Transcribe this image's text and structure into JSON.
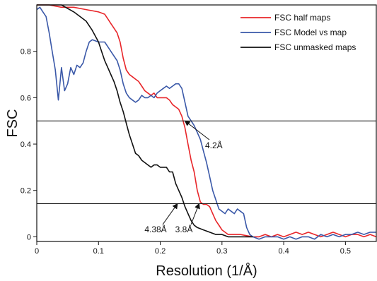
{
  "chart_data": {
    "type": "line",
    "title": "",
    "xlabel": "Resolution (1/Å)",
    "ylabel": "FSC",
    "xlim": [
      0,
      0.55
    ],
    "ylim": [
      -0.02,
      1.0
    ],
    "xticks": [
      0,
      0.1,
      0.2,
      0.3,
      0.4,
      0.5
    ],
    "xtick_labels": [
      "0",
      "0.1",
      "0.2",
      "0.3",
      "0.4",
      "0.5"
    ],
    "yticks": [
      0,
      0.2,
      0.4,
      0.6,
      0.8
    ],
    "ytick_labels": [
      "0",
      "0.2",
      "0.4",
      "0.6",
      "0.8"
    ],
    "grid": false,
    "legend_position": "top-right",
    "hlines": [
      0.5,
      0.143
    ],
    "series": [
      {
        "name": "FSC half maps",
        "color": "#e8262a",
        "x": [
          0,
          0.02,
          0.04,
          0.06,
          0.08,
          0.1,
          0.11,
          0.115,
          0.12,
          0.125,
          0.13,
          0.135,
          0.14,
          0.145,
          0.15,
          0.155,
          0.16,
          0.165,
          0.17,
          0.175,
          0.18,
          0.185,
          0.19,
          0.195,
          0.2,
          0.205,
          0.21,
          0.215,
          0.22,
          0.225,
          0.23,
          0.235,
          0.24,
          0.245,
          0.25,
          0.255,
          0.26,
          0.265,
          0.27,
          0.275,
          0.28,
          0.285,
          0.29,
          0.295,
          0.3,
          0.305,
          0.31,
          0.32,
          0.33,
          0.34,
          0.35,
          0.36,
          0.37,
          0.38,
          0.39,
          0.4,
          0.41,
          0.42,
          0.43,
          0.44,
          0.45,
          0.46,
          0.47,
          0.48,
          0.49,
          0.5,
          0.51,
          0.52,
          0.53,
          0.54,
          0.55
        ],
        "y": [
          1.0,
          1.0,
          0.99,
          0.99,
          0.98,
          0.97,
          0.96,
          0.94,
          0.92,
          0.9,
          0.88,
          0.84,
          0.77,
          0.72,
          0.7,
          0.69,
          0.68,
          0.67,
          0.65,
          0.63,
          0.62,
          0.61,
          0.62,
          0.6,
          0.6,
          0.6,
          0.6,
          0.59,
          0.57,
          0.56,
          0.55,
          0.52,
          0.47,
          0.4,
          0.33,
          0.28,
          0.2,
          0.15,
          0.14,
          0.14,
          0.13,
          0.1,
          0.07,
          0.05,
          0.03,
          0.02,
          0.01,
          0.01,
          0.01,
          0.005,
          0.0,
          0.0,
          0.01,
          0.0,
          0.01,
          0.0,
          0.01,
          0.02,
          0.01,
          0.02,
          0.01,
          0.0,
          0.01,
          0.02,
          0.01,
          0.0,
          0.01,
          0.01,
          0.0,
          0.01,
          0.0
        ]
      },
      {
        "name": "FSC Model vs map",
        "color": "#3a58a8",
        "x": [
          0,
          0.005,
          0.01,
          0.015,
          0.02,
          0.025,
          0.03,
          0.035,
          0.04,
          0.045,
          0.05,
          0.055,
          0.06,
          0.065,
          0.07,
          0.075,
          0.08,
          0.085,
          0.09,
          0.1,
          0.11,
          0.115,
          0.12,
          0.125,
          0.13,
          0.135,
          0.14,
          0.145,
          0.15,
          0.155,
          0.16,
          0.165,
          0.17,
          0.175,
          0.18,
          0.185,
          0.19,
          0.195,
          0.2,
          0.205,
          0.21,
          0.215,
          0.22,
          0.225,
          0.23,
          0.235,
          0.24,
          0.245,
          0.25,
          0.255,
          0.26,
          0.265,
          0.27,
          0.275,
          0.28,
          0.285,
          0.29,
          0.295,
          0.3,
          0.305,
          0.31,
          0.315,
          0.32,
          0.325,
          0.33,
          0.335,
          0.34,
          0.345,
          0.35,
          0.36,
          0.37,
          0.38,
          0.39,
          0.4,
          0.41,
          0.42,
          0.43,
          0.44,
          0.45,
          0.46,
          0.47,
          0.48,
          0.49,
          0.5,
          0.51,
          0.52,
          0.53,
          0.54,
          0.55
        ],
        "y": [
          0.98,
          0.99,
          0.97,
          0.95,
          0.88,
          0.8,
          0.72,
          0.59,
          0.73,
          0.63,
          0.66,
          0.73,
          0.7,
          0.74,
          0.73,
          0.75,
          0.8,
          0.84,
          0.85,
          0.84,
          0.84,
          0.82,
          0.8,
          0.78,
          0.76,
          0.72,
          0.66,
          0.62,
          0.6,
          0.59,
          0.58,
          0.59,
          0.61,
          0.6,
          0.6,
          0.61,
          0.6,
          0.62,
          0.63,
          0.64,
          0.65,
          0.64,
          0.65,
          0.66,
          0.66,
          0.64,
          0.58,
          0.52,
          0.5,
          0.48,
          0.45,
          0.42,
          0.37,
          0.32,
          0.26,
          0.2,
          0.16,
          0.12,
          0.11,
          0.1,
          0.12,
          0.11,
          0.1,
          0.12,
          0.11,
          0.1,
          0.04,
          0.01,
          0.0,
          -0.01,
          0.0,
          0.0,
          0.0,
          -0.01,
          0.0,
          -0.01,
          0.0,
          0.0,
          -0.01,
          0.01,
          0.0,
          0.01,
          0.0,
          0.01,
          0.01,
          0.02,
          0.01,
          0.02,
          0.02
        ]
      },
      {
        "name": "FSC unmasked maps",
        "color": "#111111",
        "x": [
          0,
          0.02,
          0.04,
          0.06,
          0.07,
          0.08,
          0.09,
          0.1,
          0.105,
          0.11,
          0.115,
          0.12,
          0.125,
          0.13,
          0.135,
          0.14,
          0.145,
          0.15,
          0.155,
          0.16,
          0.165,
          0.17,
          0.175,
          0.18,
          0.185,
          0.19,
          0.195,
          0.2,
          0.205,
          0.21,
          0.215,
          0.22,
          0.225,
          0.23,
          0.235,
          0.24,
          0.245,
          0.25,
          0.255,
          0.26,
          0.27,
          0.28,
          0.29,
          0.3,
          0.31,
          0.32,
          0.33,
          0.34,
          0.35
        ],
        "y": [
          1.0,
          1.0,
          1.0,
          0.97,
          0.95,
          0.93,
          0.89,
          0.84,
          0.8,
          0.76,
          0.73,
          0.7,
          0.67,
          0.63,
          0.58,
          0.54,
          0.49,
          0.44,
          0.4,
          0.36,
          0.35,
          0.33,
          0.32,
          0.31,
          0.3,
          0.31,
          0.31,
          0.3,
          0.3,
          0.3,
          0.28,
          0.28,
          0.23,
          0.2,
          0.17,
          0.13,
          0.1,
          0.07,
          0.05,
          0.04,
          0.03,
          0.02,
          0.01,
          0.01,
          0.0,
          0.0,
          0.0,
          0.0,
          0.0
        ]
      }
    ],
    "annotations": [
      {
        "text": "4.2Å",
        "x": 0.24,
        "y": 0.5
      },
      {
        "text": "3.8Å",
        "x": 0.263,
        "y": 0.143
      },
      {
        "text": "4.38Å",
        "x": 0.228,
        "y": 0.143
      }
    ]
  }
}
